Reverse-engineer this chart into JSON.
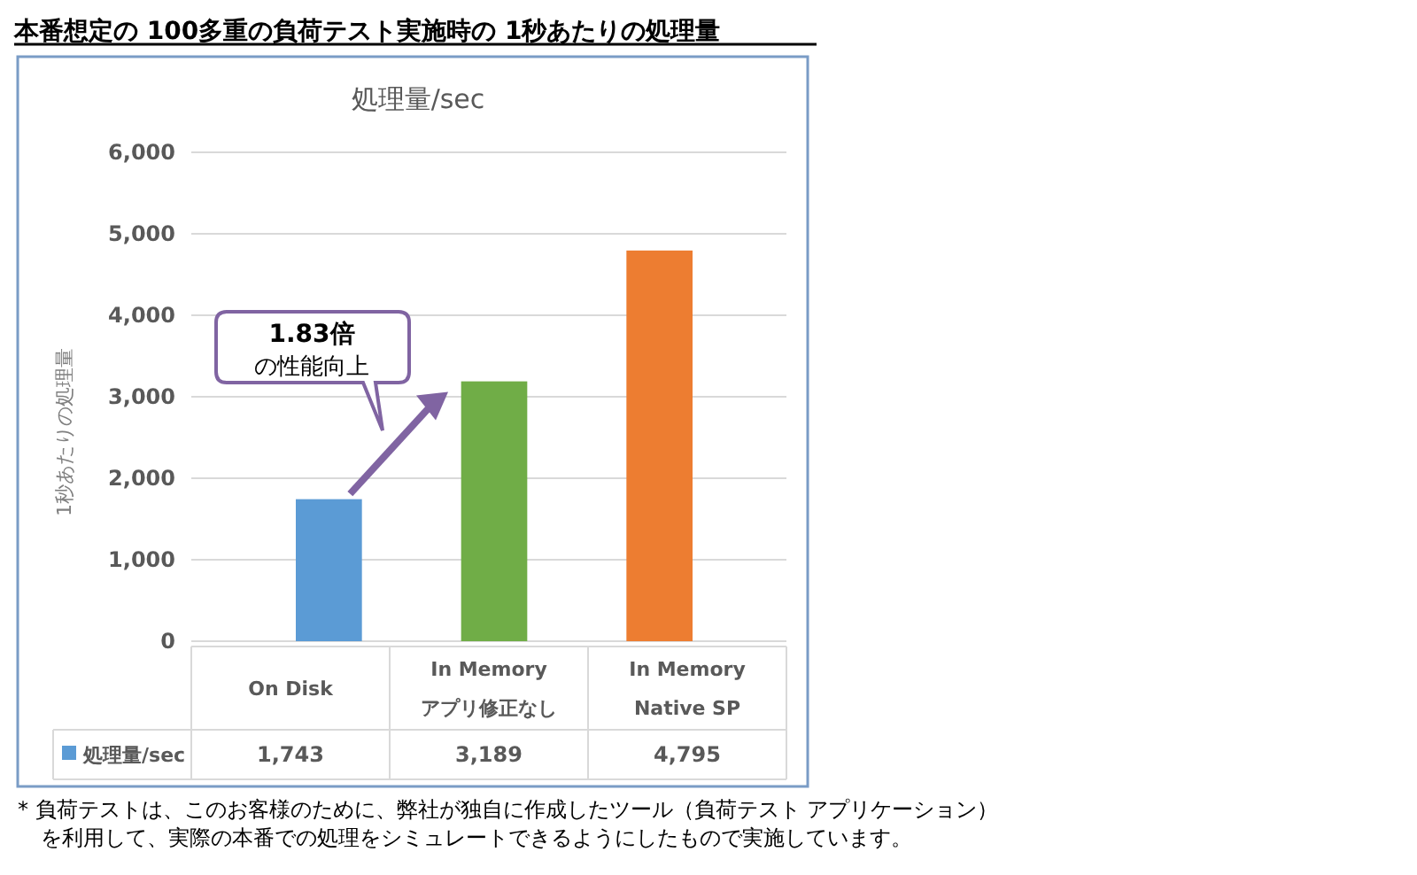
{
  "chart_data": {
    "type": "bar",
    "title": "本番想定の 100多重の負荷テスト実施時の 1秒あたりの処理量",
    "subtitle": "処理量/sec",
    "ylabel": "1秒あたりの処理量",
    "categories": [
      "On Disk",
      "In Memory\nアプリ修正なし",
      "In Memory\nNative SP"
    ],
    "series": [
      {
        "name": "処理量/sec",
        "color": "#5b9bd5",
        "colors": [
          "#5b9bd5",
          "#70ad47",
          "#ed7d31"
        ],
        "values": [
          1743,
          3189,
          4795
        ],
        "value_labels": [
          "1,743",
          "3,189",
          "4,795"
        ]
      }
    ],
    "ylim": [
      0,
      6000
    ],
    "yticks": [
      {
        "value": 0,
        "label": "0"
      },
      {
        "value": 1000,
        "label": "1,000"
      },
      {
        "value": 2000,
        "label": "2,000"
      },
      {
        "value": 3000,
        "label": "3,000"
      },
      {
        "value": 4000,
        "label": "4,000"
      },
      {
        "value": 5000,
        "label": "5,000"
      },
      {
        "value": 6000,
        "label": "6,000"
      }
    ],
    "grid": "y",
    "legend": "bottom",
    "annotations": [
      "1.83倍",
      "の性能向上",
      "* 負荷テストは、このお客様のために、弊社が独自に作成したツール（負荷テスト アプリケーション）",
      "を利用して、実際の本番での処理をシミュレートできるようにしたもので実施しています。"
    ]
  }
}
